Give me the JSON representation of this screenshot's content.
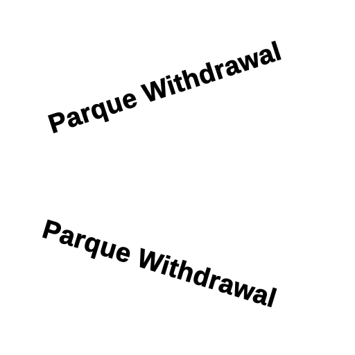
{
  "texts": {
    "upper": "Parque Withdrawal",
    "lower": "Parque Withdrawal"
  },
  "colors": {
    "background": "#ffffff",
    "text": "#000000"
  }
}
